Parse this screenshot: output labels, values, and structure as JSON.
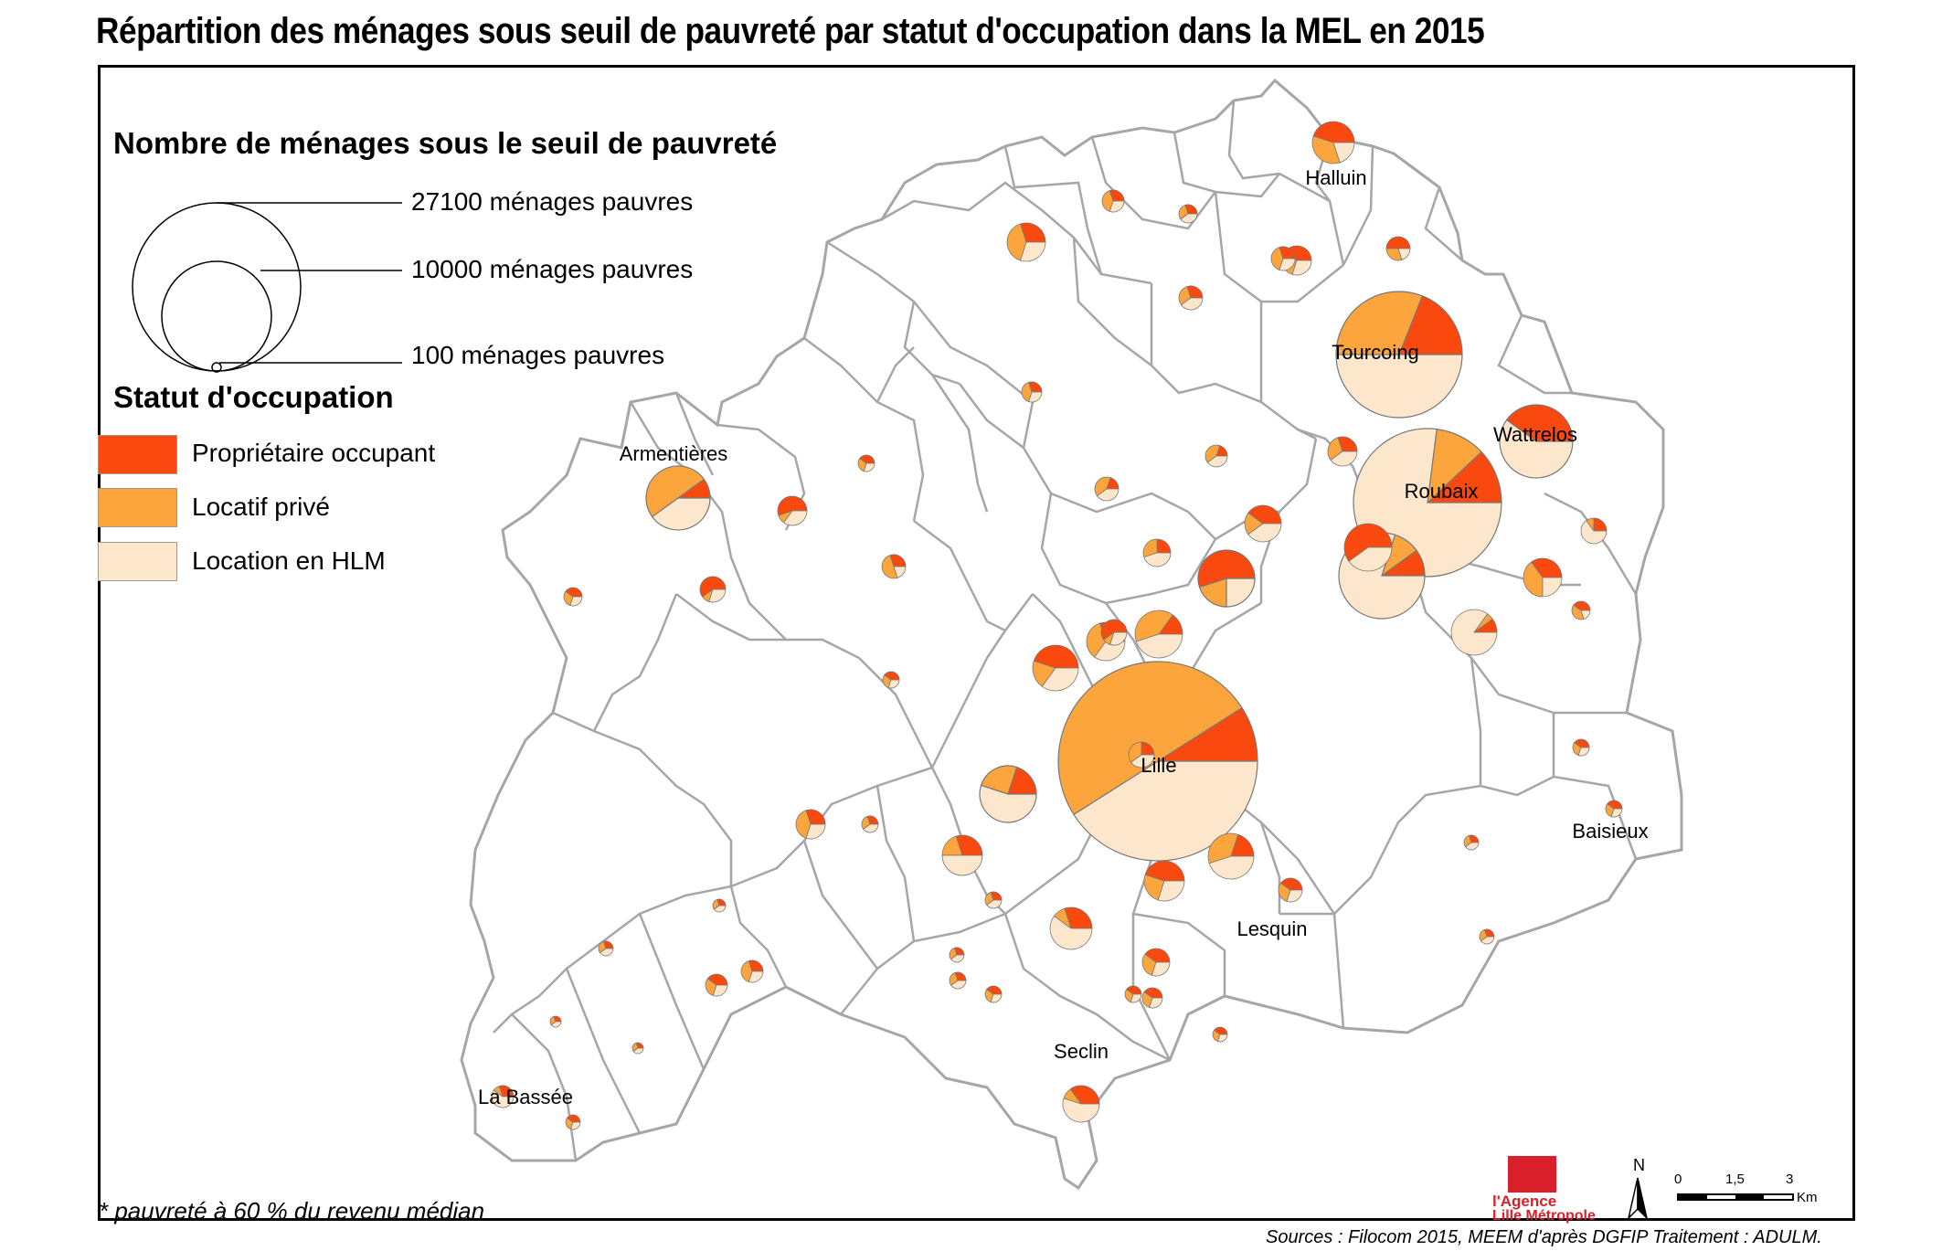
{
  "title": "Répartition des ménages sous seuil de pauvreté par statut d'occupation dans la MEL en 2015",
  "legend": {
    "size_title": "Nombre de ménages sous le seuil de pauvreté",
    "sizes": [
      {
        "label": "27100 ménages pauvres",
        "value": 27100
      },
      {
        "label": "10000 ménages pauvres",
        "value": 10000
      },
      {
        "label": "100 ménages pauvres",
        "value": 100
      }
    ],
    "status_title": "Statut d'occupation",
    "categories": [
      {
        "label": "Propriétaire occupant",
        "color": "#f9490e"
      },
      {
        "label": "Locatif privé",
        "color": "#fba53c"
      },
      {
        "label": "Location en HLM",
        "color": "#fde7cc"
      }
    ]
  },
  "cities": {
    "lille": "Lille",
    "roubaix": "Roubaix",
    "tourcoing": "Tourcoing",
    "wattrelos": "Wattrelos",
    "halluin": "Halluin",
    "armentieres": "Armentières",
    "baisieux": "Baisieux",
    "lesquin": "Lesquin",
    "seclin": "Seclin",
    "la_bassee": "La Bassée"
  },
  "note": "* pauvreté à 60 % du revenu médian",
  "sources": "Sources : Filocom 2015, MEEM d'après DGFIP   Traitement : ADULM.",
  "logo": {
    "line1": "l'Agence",
    "line2": "Lille Métropole"
  },
  "north_label": "N",
  "scale": {
    "labels": [
      "0",
      "1,5",
      "3"
    ],
    "unit": "Km"
  },
  "colors": {
    "owner": "#f9490e",
    "private": "#fba53c",
    "social": "#fde7cc",
    "boundary": "#a6a6a6"
  }
}
